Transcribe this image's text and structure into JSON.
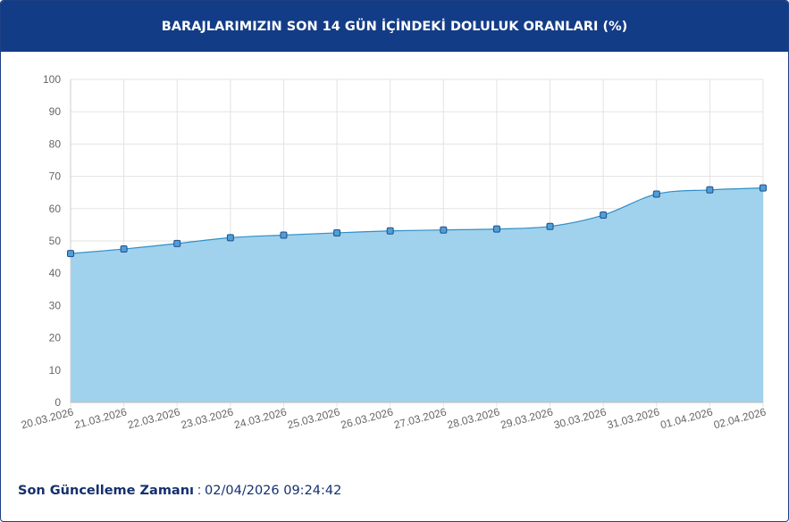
{
  "header": {
    "title": "BARAJLARIMIZIN SON 14 GÜN İÇİNDEKİ DOLULUK ORANLARI (%)"
  },
  "footer": {
    "label": "Son Güncelleme Zamanı",
    "separator": ":",
    "value": "02/04/2026 09:24:42"
  },
  "colors": {
    "header_bg": "#133c87",
    "area_fill": "#9bd0ec",
    "line": "#2f8fc7",
    "marker_fill": "#4e9ed7",
    "marker_stroke": "#1f4f8a"
  },
  "chart_data": {
    "type": "area",
    "title": "BARAJLARIMIZIN SON 14 GÜN İÇİNDEKİ DOLULUK ORANLARI (%)",
    "xlabel": "",
    "ylabel": "",
    "ylim": [
      0,
      100
    ],
    "yticks": [
      0,
      10,
      20,
      30,
      40,
      50,
      60,
      70,
      80,
      90,
      100
    ],
    "grid": true,
    "legend": "none",
    "categories": [
      "20.03.2026",
      "21.03.2026",
      "22.03.2026",
      "23.03.2026",
      "24.03.2026",
      "25.03.2026",
      "26.03.2026",
      "27.03.2026",
      "28.03.2026",
      "29.03.2026",
      "30.03.2026",
      "31.03.2026",
      "01.04.2026",
      "02.04.2026"
    ],
    "values": [
      46.1,
      47.5,
      49.2,
      51.0,
      51.8,
      52.5,
      53.1,
      53.4,
      53.7,
      54.5,
      58.0,
      64.5,
      65.8,
      66.4
    ]
  }
}
